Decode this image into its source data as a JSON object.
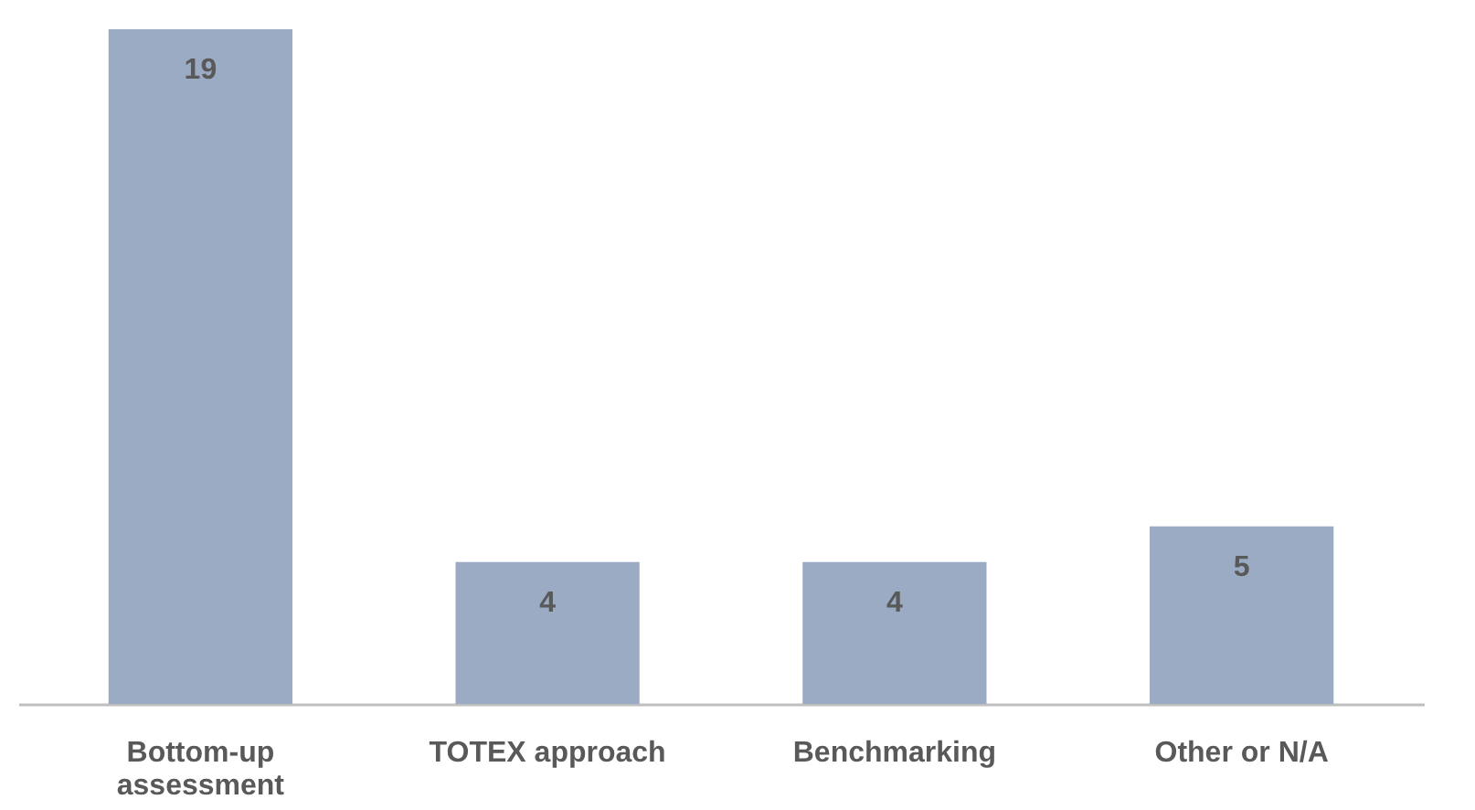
{
  "chart_data": {
    "type": "bar",
    "categories": [
      "Bottom-up assessment",
      "TOTEX approach",
      "Benchmarking",
      "Other or N/A"
    ],
    "values": [
      19,
      4,
      4,
      5
    ],
    "color": "#9aabc3",
    "data_labels": true,
    "tick_labels": "x"
  }
}
